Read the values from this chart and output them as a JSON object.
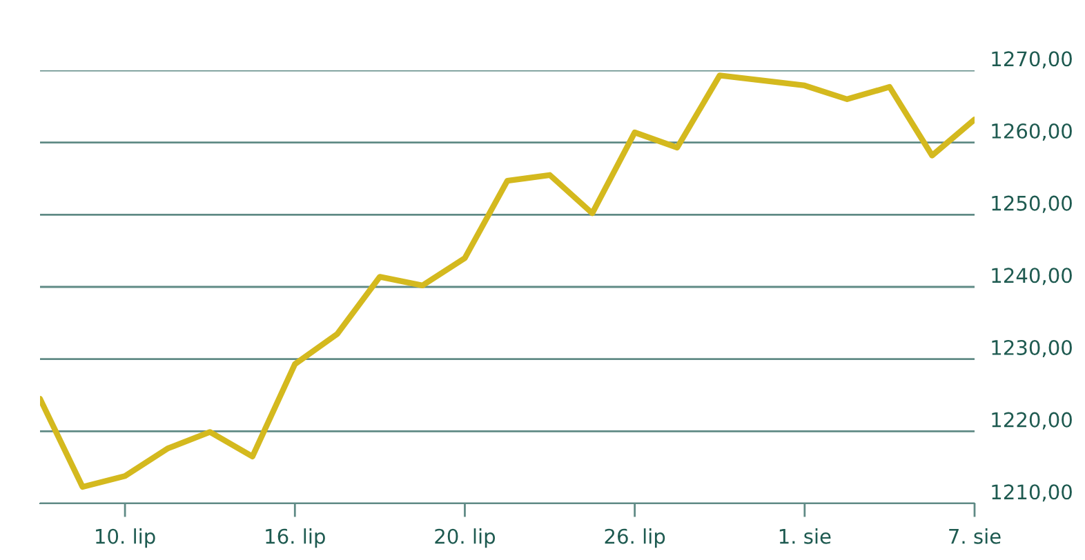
{
  "chart_data": {
    "type": "line",
    "categories": [
      null,
      null,
      "10. lip",
      null,
      null,
      null,
      "16. lip",
      null,
      null,
      null,
      "20. lip",
      null,
      null,
      null,
      "26. lip",
      null,
      null,
      null,
      "1. sie",
      null,
      null,
      null,
      "7. sie"
    ],
    "series": [
      {
        "color": "#d4b91e",
        "values": [
          1224.5,
          1212.3,
          1213.8,
          1217.6,
          1219.9,
          1216.5,
          1229.3,
          1233.5,
          1241.4,
          1240.2,
          1244.0,
          1254.7,
          1255.5,
          1250.2,
          1261.4,
          1259.3,
          1269.3,
          1268.6,
          1267.9,
          1266.0,
          1267.7,
          1258.2,
          1263.2
        ]
      }
    ],
    "ylim": [
      1210,
      1270
    ],
    "yticks": [
      {
        "value": 1210,
        "label": "1210,00"
      },
      {
        "value": 1220,
        "label": "1220,00"
      },
      {
        "value": 1230,
        "label": "1230,00"
      },
      {
        "value": 1240,
        "label": "1240,00"
      },
      {
        "value": 1250,
        "label": "1250,00"
      },
      {
        "value": 1260,
        "label": "1260,00"
      },
      {
        "value": 1270,
        "label": "1270,00"
      }
    ],
    "grid": "y",
    "marker": "none",
    "line_style": "solid"
  }
}
